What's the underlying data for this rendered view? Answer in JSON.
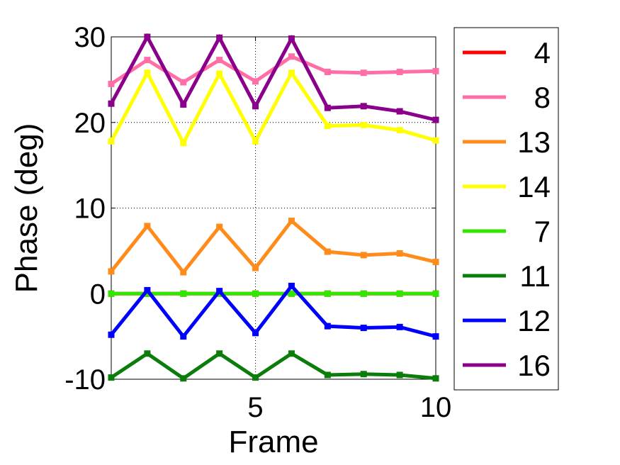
{
  "chart_data": {
    "type": "line",
    "title": "",
    "xlabel": "Frame",
    "ylabel": "Phase (deg)",
    "xlim": [
      1,
      10
    ],
    "ylim": [
      -10,
      30
    ],
    "x_ticks": [
      5,
      10
    ],
    "y_ticks": [
      -10,
      0,
      10,
      20,
      30
    ],
    "x_tick_labels": [
      "5",
      "10"
    ],
    "y_tick_labels": [
      "-10",
      "0",
      "10",
      "20",
      "30"
    ],
    "grid": true,
    "legend_position": "right",
    "x": [
      1,
      2,
      3,
      4,
      5,
      6,
      7,
      8,
      9,
      10
    ],
    "series": [
      {
        "name": "4",
        "color": "#ff0000",
        "values": [
          0,
          0,
          0,
          0,
          0,
          0,
          0,
          0,
          0,
          0
        ]
      },
      {
        "name": "8",
        "color": "#ff6ea6",
        "values": [
          24.5,
          27.3,
          24.7,
          27.3,
          24.8,
          27.7,
          25.9,
          25.8,
          25.9,
          26.0
        ]
      },
      {
        "name": "13",
        "color": "#ff8c1a",
        "values": [
          2.6,
          7.9,
          2.5,
          7.8,
          3.0,
          8.5,
          4.9,
          4.5,
          4.7,
          3.7
        ]
      },
      {
        "name": "14",
        "color": "#ffff00",
        "values": [
          17.8,
          25.8,
          17.6,
          25.7,
          17.8,
          25.8,
          19.6,
          19.7,
          19.1,
          17.9
        ]
      },
      {
        "name": "7",
        "color": "#33e600",
        "values": [
          0,
          0,
          0,
          0,
          0,
          0,
          0,
          0,
          0,
          0
        ]
      },
      {
        "name": "11",
        "color": "#0a7d0a",
        "values": [
          -9.8,
          -7.0,
          -9.9,
          -7.0,
          -9.8,
          -7.0,
          -9.5,
          -9.4,
          -9.5,
          -9.9
        ]
      },
      {
        "name": "12",
        "color": "#0000ff",
        "values": [
          -4.8,
          0.4,
          -5.0,
          0.3,
          -4.6,
          0.9,
          -3.8,
          -4.0,
          -3.9,
          -5.0
        ]
      },
      {
        "name": "16",
        "color": "#8b008b",
        "values": [
          22.2,
          30.0,
          22.1,
          29.9,
          21.9,
          29.8,
          21.7,
          21.9,
          21.3,
          20.3
        ]
      }
    ]
  }
}
